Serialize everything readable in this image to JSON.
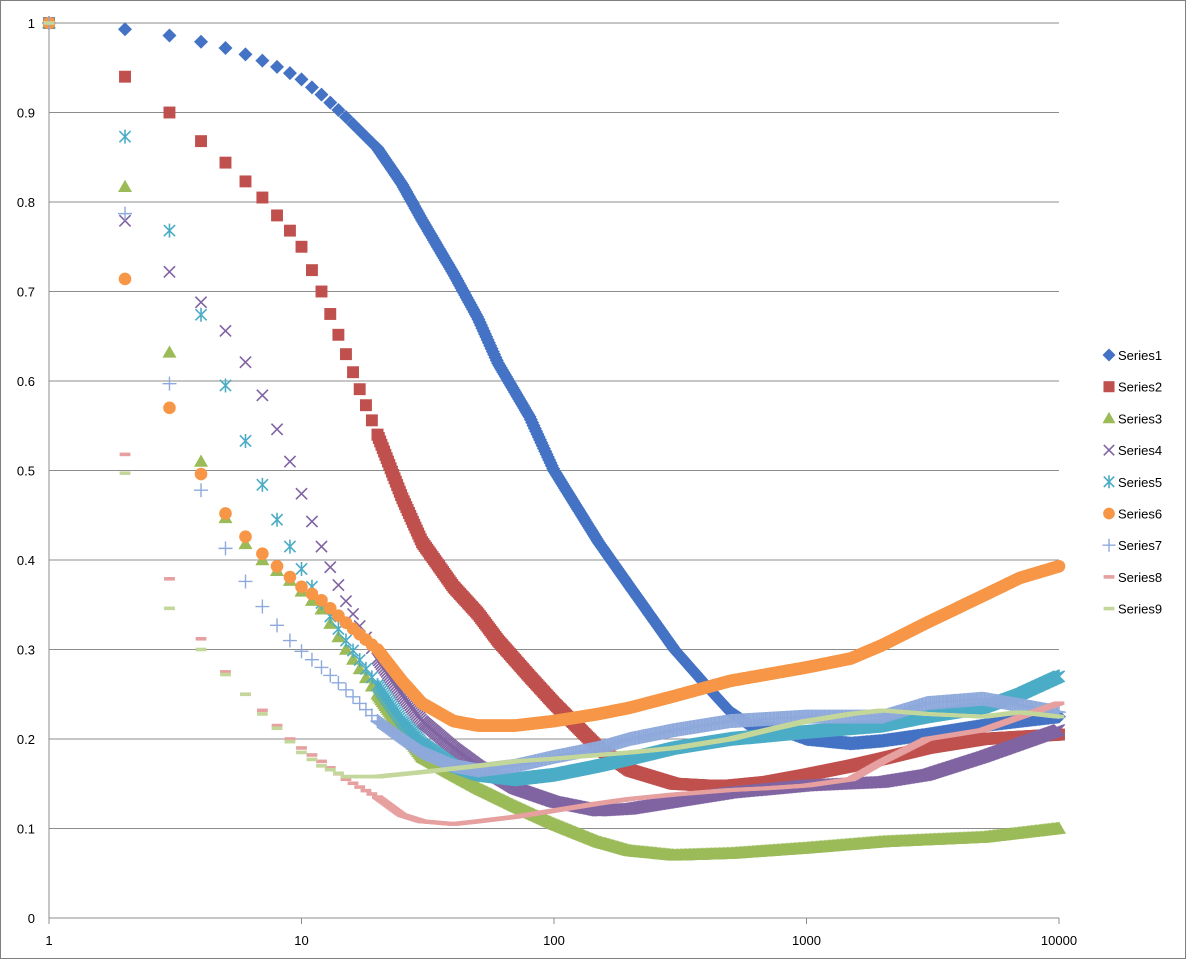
{
  "chart_data": {
    "type": "scatter",
    "title": "",
    "xlabel": "",
    "ylabel": "",
    "x_scale": "log",
    "xlim": [
      1,
      10000
    ],
    "ylim": [
      0,
      1
    ],
    "grid": true,
    "legend_position": "right",
    "x_tick_labels": [
      "1",
      "10",
      "100",
      "1000",
      "10000"
    ],
    "y_tick_labels": [
      "0",
      "0.1",
      "0.2",
      "0.3",
      "0.4",
      "0.5",
      "0.6",
      "0.7",
      "0.8",
      "0.9",
      "1"
    ],
    "series": [
      {
        "name": "Series1",
        "color": "#4472C4",
        "marker": "diamond",
        "x": [
          1,
          2,
          3,
          4,
          5,
          6,
          7,
          8,
          9,
          10,
          12,
          15,
          20,
          25,
          30,
          40,
          50,
          60,
          80,
          100,
          150,
          200,
          300,
          400,
          500,
          600,
          800,
          1000,
          1500,
          2000,
          3000,
          5000,
          7000,
          10000
        ],
        "y": [
          1,
          0.993,
          0.986,
          0.979,
          0.972,
          0.965,
          0.958,
          0.951,
          0.944,
          0.937,
          0.92,
          0.895,
          0.86,
          0.82,
          0.78,
          0.72,
          0.67,
          0.62,
          0.56,
          0.5,
          0.42,
          0.37,
          0.3,
          0.26,
          0.23,
          0.215,
          0.21,
          0.2,
          0.195,
          0.198,
          0.205,
          0.215,
          0.22,
          0.225
        ]
      },
      {
        "name": "Series2",
        "color": "#C0504D",
        "marker": "square",
        "x": [
          1,
          2,
          3,
          4,
          5,
          6,
          7,
          8,
          9,
          10,
          12,
          15,
          20,
          25,
          30,
          40,
          50,
          60,
          80,
          100,
          150,
          200,
          300,
          400,
          500,
          700,
          1000,
          1500,
          2000,
          3000,
          5000,
          10000
        ],
        "y": [
          1,
          0.94,
          0.9,
          0.868,
          0.844,
          0.823,
          0.805,
          0.785,
          0.768,
          0.75,
          0.7,
          0.63,
          0.54,
          0.47,
          0.42,
          0.37,
          0.34,
          0.31,
          0.27,
          0.24,
          0.19,
          0.165,
          0.15,
          0.148,
          0.148,
          0.152,
          0.16,
          0.17,
          0.178,
          0.19,
          0.2,
          0.205
        ]
      },
      {
        "name": "Series3",
        "color": "#9BBB59",
        "marker": "triangle",
        "x": [
          1,
          2,
          3,
          4,
          5,
          6,
          7,
          8,
          9,
          10,
          12,
          15,
          20,
          25,
          30,
          40,
          50,
          70,
          100,
          150,
          200,
          300,
          500,
          1000,
          2000,
          5000,
          10000
        ],
        "y": [
          1,
          0.817,
          0.632,
          0.51,
          0.447,
          0.418,
          0.4,
          0.388,
          0.377,
          0.365,
          0.345,
          0.3,
          0.25,
          0.21,
          0.18,
          0.16,
          0.145,
          0.125,
          0.105,
          0.085,
          0.075,
          0.07,
          0.072,
          0.078,
          0.085,
          0.09,
          0.1
        ]
      },
      {
        "name": "Series4",
        "color": "#8064A2",
        "marker": "x",
        "x": [
          1,
          2,
          3,
          4,
          5,
          6,
          7,
          8,
          9,
          10,
          11,
          12,
          13,
          14,
          15,
          20,
          25,
          30,
          40,
          50,
          70,
          100,
          150,
          200,
          300,
          500,
          1000,
          2000,
          3000,
          5000,
          10000
        ],
        "y": [
          1,
          0.779,
          0.722,
          0.688,
          0.656,
          0.621,
          0.584,
          0.546,
          0.51,
          0.474,
          0.443,
          0.415,
          0.392,
          0.372,
          0.354,
          0.29,
          0.25,
          0.22,
          0.19,
          0.17,
          0.145,
          0.13,
          0.12,
          0.122,
          0.13,
          0.14,
          0.148,
          0.152,
          0.16,
          0.18,
          0.21
        ]
      },
      {
        "name": "Series5",
        "color": "#4BACC6",
        "marker": "asterisk",
        "x": [
          1,
          2,
          3,
          4,
          5,
          6,
          7,
          8,
          9,
          10,
          12,
          15,
          20,
          25,
          30,
          40,
          50,
          70,
          100,
          150,
          200,
          300,
          500,
          1000,
          2000,
          3000,
          5000,
          7000,
          10000
        ],
        "y": [
          1,
          0.873,
          0.768,
          0.674,
          0.595,
          0.533,
          0.484,
          0.445,
          0.415,
          0.39,
          0.352,
          0.31,
          0.26,
          0.22,
          0.195,
          0.17,
          0.16,
          0.155,
          0.16,
          0.17,
          0.178,
          0.19,
          0.2,
          0.208,
          0.215,
          0.225,
          0.235,
          0.25,
          0.27
        ]
      },
      {
        "name": "Series6",
        "color": "#F79646",
        "marker": "circle",
        "x": [
          1,
          2,
          3,
          4,
          5,
          6,
          7,
          8,
          9,
          10,
          12,
          15,
          20,
          25,
          30,
          40,
          50,
          70,
          100,
          150,
          200,
          300,
          500,
          1000,
          1500,
          2000,
          3000,
          5000,
          7000,
          10000
        ],
        "y": [
          1,
          0.714,
          0.57,
          0.496,
          0.452,
          0.426,
          0.407,
          0.393,
          0.381,
          0.37,
          0.355,
          0.33,
          0.3,
          0.265,
          0.24,
          0.22,
          0.215,
          0.215,
          0.22,
          0.228,
          0.235,
          0.248,
          0.265,
          0.28,
          0.29,
          0.305,
          0.33,
          0.36,
          0.38,
          0.393
        ]
      },
      {
        "name": "Series7",
        "color": "#8EA9DB",
        "marker": "plus",
        "x": [
          1,
          2,
          3,
          4,
          5,
          6,
          7,
          8,
          9,
          10,
          12,
          15,
          20,
          25,
          30,
          40,
          50,
          70,
          100,
          150,
          200,
          300,
          500,
          1000,
          2000,
          3000,
          5000,
          10000
        ],
        "y": [
          1,
          0.787,
          0.597,
          0.478,
          0.413,
          0.376,
          0.348,
          0.327,
          0.31,
          0.298,
          0.28,
          0.255,
          0.22,
          0.2,
          0.185,
          0.17,
          0.165,
          0.17,
          0.18,
          0.19,
          0.2,
          0.21,
          0.22,
          0.225,
          0.225,
          0.24,
          0.245,
          0.23
        ]
      },
      {
        "name": "Series8",
        "color": "#E6A0A0",
        "marker": "dash",
        "x": [
          1,
          2,
          3,
          4,
          5,
          6,
          7,
          8,
          9,
          10,
          12,
          15,
          20,
          25,
          30,
          40,
          50,
          70,
          100,
          150,
          200,
          300,
          500,
          700,
          1000,
          1500,
          2000,
          3000,
          5000,
          10000
        ],
        "y": [
          1,
          0.518,
          0.379,
          0.312,
          0.275,
          0.25,
          0.232,
          0.215,
          0.2,
          0.19,
          0.175,
          0.155,
          0.135,
          0.115,
          0.108,
          0.105,
          0.108,
          0.113,
          0.12,
          0.128,
          0.133,
          0.138,
          0.143,
          0.145,
          0.148,
          0.155,
          0.175,
          0.2,
          0.21,
          0.24
        ]
      },
      {
        "name": "Series9",
        "color": "#C4D79B",
        "marker": "dash",
        "x": [
          1,
          2,
          3,
          4,
          5,
          6,
          7,
          8,
          9,
          10,
          12,
          15,
          20,
          30,
          50,
          70,
          100,
          200,
          300,
          500,
          700,
          1000,
          1500,
          2000,
          3000,
          5000,
          7000,
          10000
        ],
        "y": [
          1,
          0.497,
          0.346,
          0.3,
          0.272,
          0.25,
          0.228,
          0.212,
          0.197,
          0.185,
          0.17,
          0.158,
          0.158,
          0.163,
          0.17,
          0.175,
          0.178,
          0.185,
          0.19,
          0.2,
          0.21,
          0.22,
          0.228,
          0.232,
          0.228,
          0.225,
          0.23,
          0.225
        ]
      }
    ]
  }
}
